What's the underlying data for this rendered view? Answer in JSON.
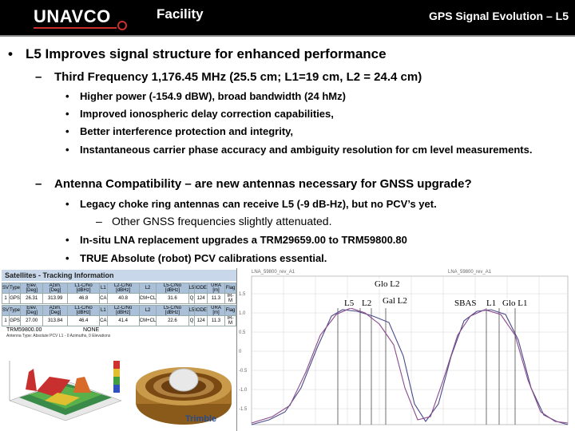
{
  "header": {
    "logo_text": "UNAVCO",
    "title": "Facility",
    "slide_title": "GPS Signal Evolution – L5"
  },
  "content": {
    "bullet1": "L5 Improves signal structure for enhanced performance",
    "sub1": "Third Frequency 1,176.45 MHz (25.5 cm; L1=19 cm, L2 = 24.4 cm)",
    "sub1_items": [
      "Higher power (-154.9 dBW), broad bandwidth (24 hMz)",
      "Improved ionospheric delay correction capabilities,",
      "Better interference protection and integrity,",
      "Instantaneous carrier phase accuracy and ambiguity resolution for cm level measurements."
    ],
    "sub2": "Antenna Compatibility – are new antennas necessary for GNSS upgrade?",
    "sub2_items": [
      "Legacy choke ring antennas can receive L5 (-9 dB-Hz), but no PCV’s yet.",
      "In-situ LNA replacement upgrades a TRM29659.00 to TRM59800.80",
      "TRUE Absolute (robot) PCV calibrations essential."
    ],
    "sub2_nested": "Other GNSS frequencies slightly attenuated."
  },
  "tracking_panel": {
    "title": "Satellites - Tracking Information",
    "columns": [
      "SV",
      "Type",
      "Elev. [Deg]",
      "Azim. [Deg]",
      "L1-C/No [dBHz]",
      "L1",
      "L2-C/No [dBHz]",
      "L2",
      "L5-C/No [dBHz]",
      "L5",
      "IODE",
      "URA [m]",
      "Flag"
    ],
    "row1": [
      "1",
      "GPS",
      "26.31",
      "313.99",
      "46.8",
      "CA",
      "40.8",
      "CM+CL",
      "31.6",
      "Q",
      "124",
      "11.3",
      "IR-M"
    ],
    "row2": [
      "1",
      "GPS",
      "27.00",
      "313.84",
      "46.4",
      "CA",
      "41.4",
      "CM+CL",
      "22.6",
      "Q",
      "124",
      "11.3",
      "IR-M"
    ],
    "label": "TRM59800.00",
    "label2": "NONE",
    "sub_caption": "Antenna Type: Absolute PCV L1 - 0 Azimuths, 0 Elevations"
  },
  "spectrum_plot": {
    "header_left": "LNA_59800_rev_A1",
    "header_right": "LNA_59800_rev_A1",
    "labels": {
      "glo_l2": "Glo L2",
      "l5": "L5",
      "l2": "L2",
      "gal_l2": "Gal L2",
      "sbas": "SBAS",
      "l1": "L1",
      "glo_l1": "Glo L1"
    }
  }
}
